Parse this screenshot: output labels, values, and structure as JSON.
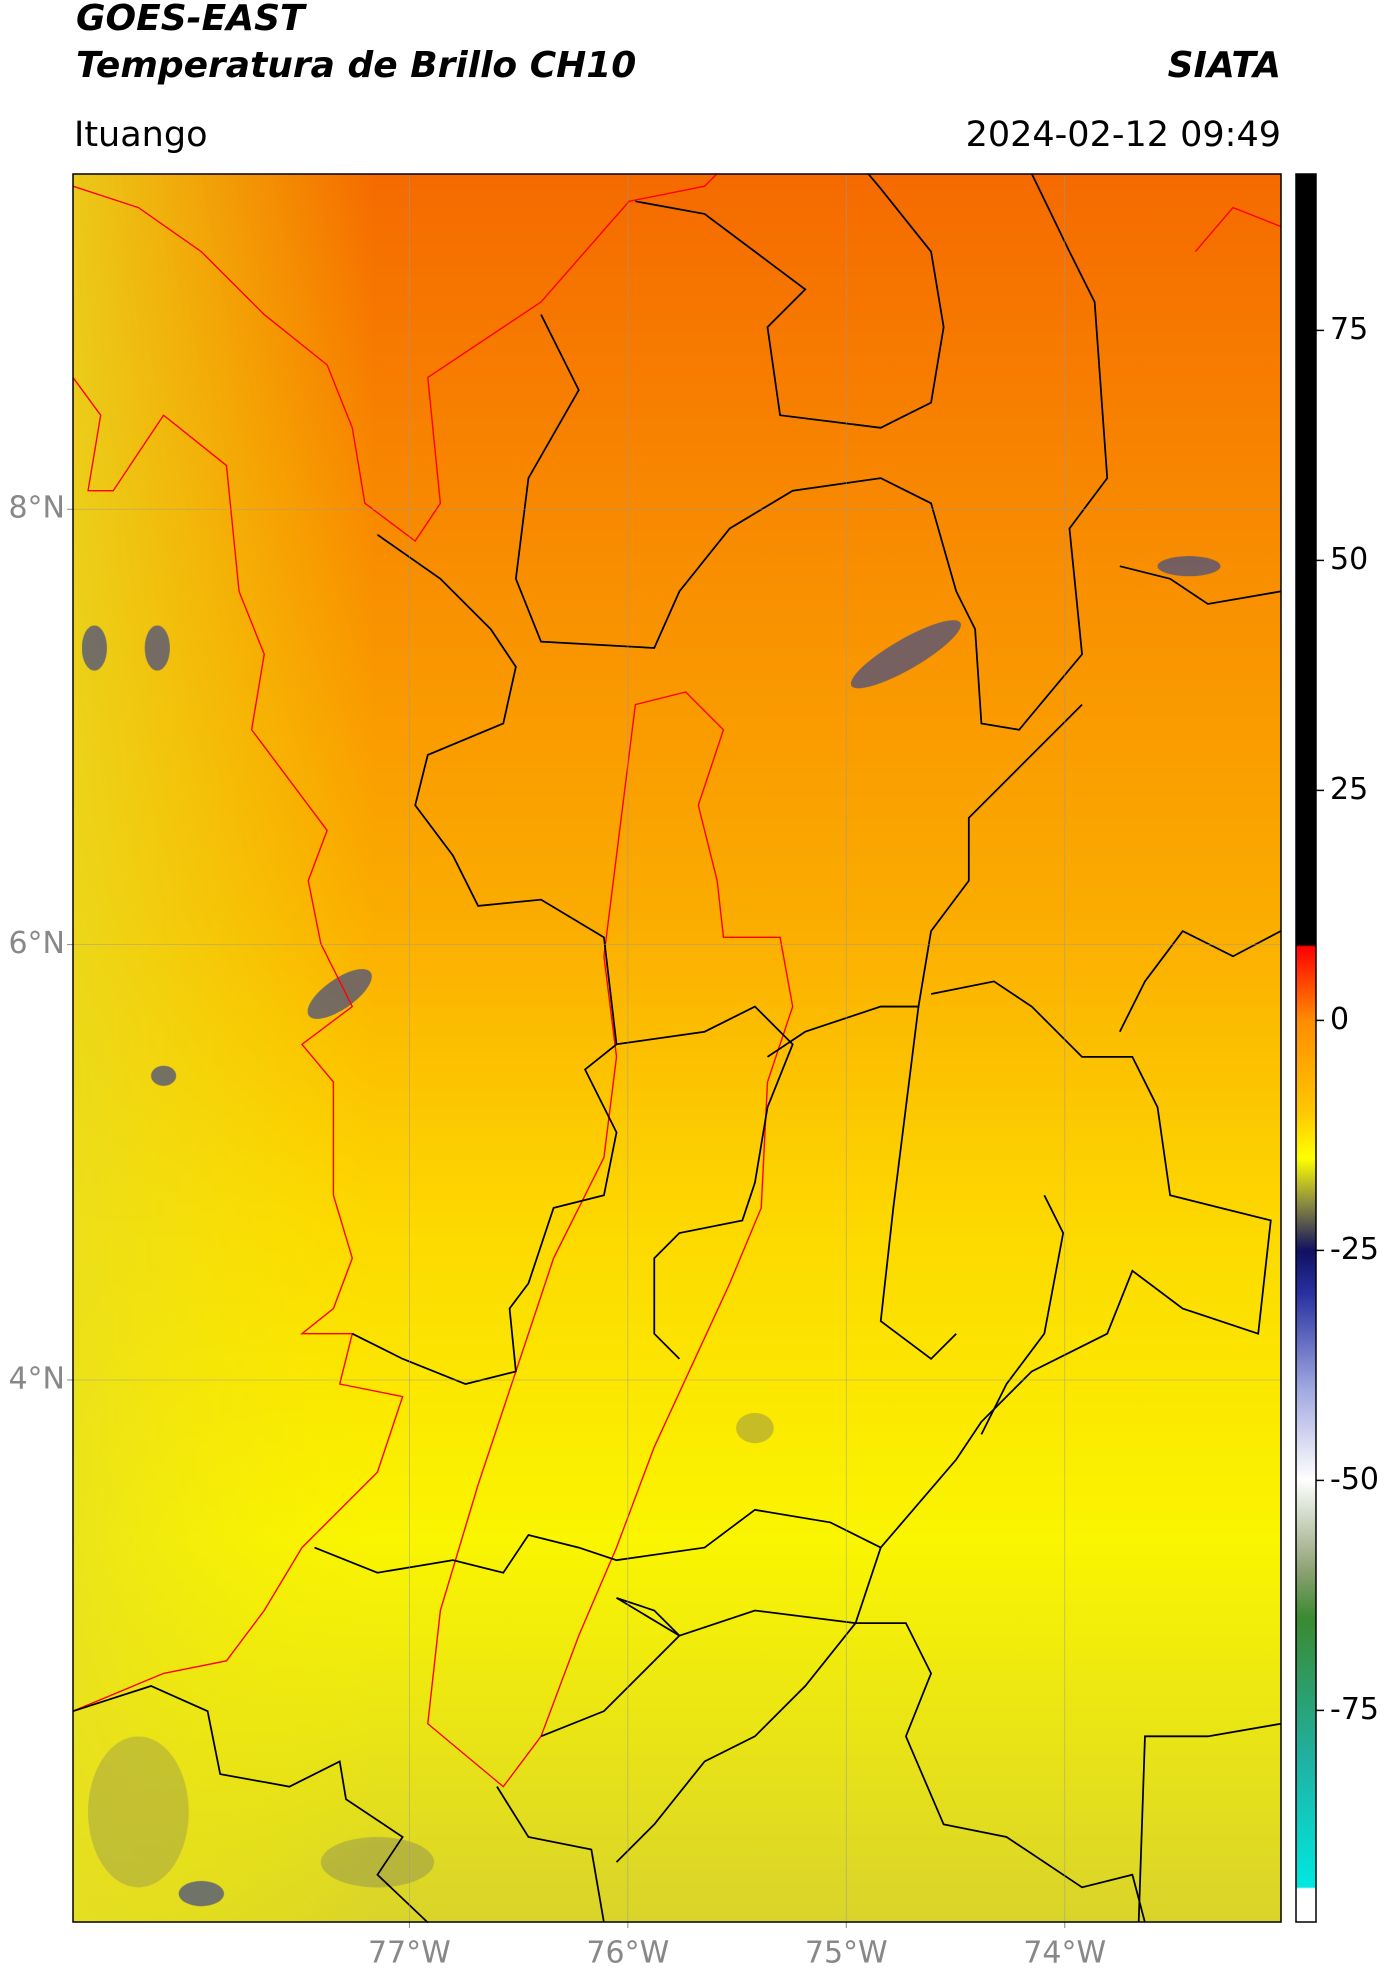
{
  "header": {
    "title": "GOES-EAST",
    "subtitle": "Temperatura de Brillo CH10",
    "brand": "SIATA",
    "location": "Ituango",
    "datetime": "2024-02-12 09:49"
  },
  "chart_data": {
    "type": "map",
    "xlim": [
      -78.54,
      -73.01
    ],
    "ylim": [
      1.51,
      9.54
    ],
    "xticks": [
      {
        "value": -77,
        "label": "77°W"
      },
      {
        "value": -76,
        "label": "76°W"
      },
      {
        "value": -75,
        "label": "75°W"
      },
      {
        "value": -74,
        "label": "74°W"
      }
    ],
    "yticks": [
      {
        "value": 8,
        "label": "8°N"
      },
      {
        "value": 6,
        "label": "6°N"
      },
      {
        "value": 4,
        "label": "4°N"
      }
    ],
    "grid": true,
    "colorbar": {
      "lim": [
        -98,
        92
      ],
      "ticks": [
        75,
        50,
        25,
        0,
        -25,
        -50,
        -75
      ]
    }
  }
}
